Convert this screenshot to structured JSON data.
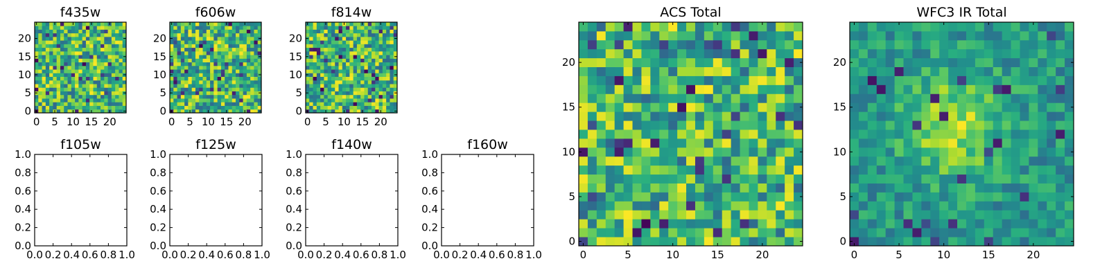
{
  "chart_data": [
    {
      "type": "heatmap",
      "title": "f435w",
      "grid_size": 25,
      "xlim": [
        -0.5,
        24.5
      ],
      "ylim": [
        -0.5,
        24.5
      ],
      "xticks": [
        0,
        5,
        10,
        15,
        20
      ],
      "yticks": [
        0,
        5,
        10,
        15,
        20
      ],
      "colormap": "viridis",
      "seed": 11,
      "pattern": "noise"
    },
    {
      "type": "heatmap",
      "title": "f606w",
      "grid_size": 25,
      "xlim": [
        -0.5,
        24.5
      ],
      "ylim": [
        -0.5,
        24.5
      ],
      "xticks": [
        0,
        5,
        10,
        15,
        20
      ],
      "yticks": [
        0,
        5,
        10,
        15,
        20
      ],
      "colormap": "viridis",
      "seed": 23,
      "pattern": "noise"
    },
    {
      "type": "heatmap",
      "title": "f814w",
      "grid_size": 25,
      "xlim": [
        -0.5,
        24.5
      ],
      "ylim": [
        -0.5,
        24.5
      ],
      "xticks": [
        0,
        5,
        10,
        15,
        20
      ],
      "yticks": [
        0,
        5,
        10,
        15,
        20
      ],
      "colormap": "viridis",
      "seed": 37,
      "pattern": "noise"
    },
    {
      "type": "empty",
      "title": "f105w",
      "xlim": [
        0,
        1
      ],
      "ylim": [
        0,
        1
      ],
      "xticks": [
        "0.0",
        "0.2",
        "0.4",
        "0.6",
        "0.8",
        "1.0"
      ],
      "yticks": [
        "0.0",
        "0.2",
        "0.4",
        "0.6",
        "0.8",
        "1.0"
      ]
    },
    {
      "type": "empty",
      "title": "f125w",
      "xlim": [
        0,
        1
      ],
      "ylim": [
        0,
        1
      ],
      "xticks": [
        "0.0",
        "0.2",
        "0.4",
        "0.6",
        "0.8",
        "1.0"
      ],
      "yticks": [
        "0.0",
        "0.2",
        "0.4",
        "0.6",
        "0.8",
        "1.0"
      ]
    },
    {
      "type": "empty",
      "title": "f140w",
      "xlim": [
        0,
        1
      ],
      "ylim": [
        0,
        1
      ],
      "xticks": [
        "0.0",
        "0.2",
        "0.4",
        "0.6",
        "0.8",
        "1.0"
      ],
      "yticks": [
        "0.0",
        "0.2",
        "0.4",
        "0.6",
        "0.8",
        "1.0"
      ]
    },
    {
      "type": "empty",
      "title": "f160w",
      "xlim": [
        0,
        1
      ],
      "ylim": [
        0,
        1
      ],
      "xticks": [
        "0.0",
        "0.2",
        "0.4",
        "0.6",
        "0.8",
        "1.0"
      ],
      "yticks": [
        "0.0",
        "0.2",
        "0.4",
        "0.6",
        "0.8",
        "1.0"
      ]
    },
    {
      "type": "heatmap",
      "title": "ACS Total",
      "grid_size": 25,
      "xlim": [
        -0.5,
        24.5
      ],
      "ylim": [
        -0.5,
        24.5
      ],
      "xticks": [
        0,
        5,
        10,
        15,
        20
      ],
      "yticks": [
        0,
        5,
        10,
        15,
        20
      ],
      "colormap": "viridis",
      "seed": 53,
      "pattern": "noise"
    },
    {
      "type": "heatmap",
      "title": "WFC3 IR Total",
      "grid_size": 25,
      "xlim": [
        -0.5,
        24.5
      ],
      "ylim": [
        -0.5,
        24.5
      ],
      "xticks": [
        0,
        5,
        10,
        15,
        20
      ],
      "yticks": [
        0,
        5,
        10,
        15,
        20
      ],
      "colormap": "viridis",
      "seed": 71,
      "pattern": "smooth-blob",
      "blob_center": [
        11,
        13
      ]
    }
  ]
}
